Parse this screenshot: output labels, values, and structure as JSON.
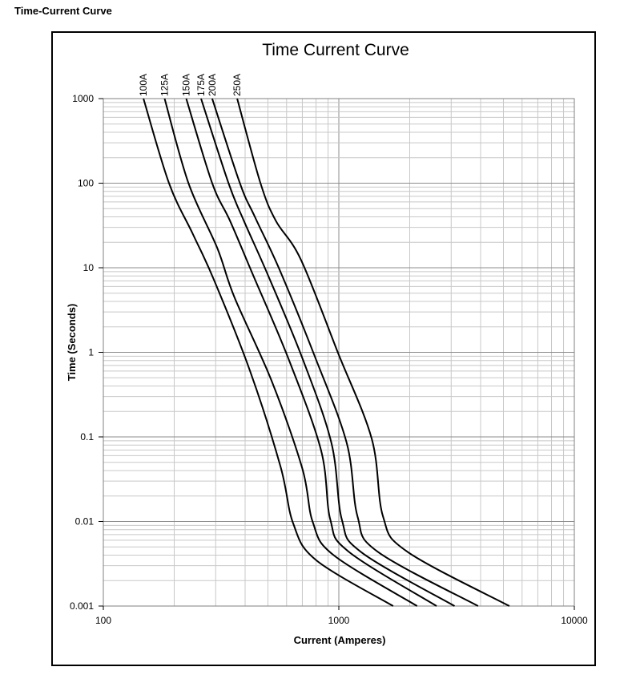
{
  "page": {
    "heading": "Time-Current Curve"
  },
  "chart_data": {
    "type": "line",
    "title": "Time Current Curve",
    "xlabel": "Current (Amperes)",
    "ylabel": "Time (Seconds)",
    "x_scale": "log",
    "y_scale": "log",
    "xlim": [
      100,
      10000
    ],
    "ylim": [
      0.001,
      1000
    ],
    "x_ticks": [
      {
        "value": 100,
        "label": "100"
      },
      {
        "value": 1000,
        "label": "1000"
      },
      {
        "value": 10000,
        "label": "10000"
      }
    ],
    "y_ticks": [
      {
        "value": 1000,
        "label": "1000"
      },
      {
        "value": 100,
        "label": "100"
      },
      {
        "value": 10,
        "label": "10"
      },
      {
        "value": 1,
        "label": "1"
      },
      {
        "value": 0.1,
        "label": "0.1"
      },
      {
        "value": 0.01,
        "label": "0.01"
      },
      {
        "value": 0.001,
        "label": "0.001"
      }
    ],
    "grid": true,
    "legend": "series labels at top of each curve",
    "series": [
      {
        "name": "100A",
        "points": [
          [
            148,
            1000
          ],
          [
            190,
            100
          ],
          [
            240,
            25
          ],
          [
            295,
            7.2
          ],
          [
            420,
            0.6
          ],
          [
            565,
            0.045
          ],
          [
            640,
            0.0095
          ],
          [
            800,
            0.0035
          ],
          [
            1700,
            0.001
          ]
        ]
      },
      {
        "name": "125A",
        "points": [
          [
            182,
            1000
          ],
          [
            230,
            100
          ],
          [
            305,
            17
          ],
          [
            360,
            4.5
          ],
          [
            520,
            0.45
          ],
          [
            700,
            0.042
          ],
          [
            775,
            0.0098
          ],
          [
            950,
            0.004
          ],
          [
            2150,
            0.001
          ]
        ]
      },
      {
        "name": "150A",
        "points": [
          [
            225,
            1000
          ],
          [
            290,
            100
          ],
          [
            345,
            36
          ],
          [
            430,
            8.5
          ],
          [
            610,
            0.85
          ],
          [
            840,
            0.07
          ],
          [
            920,
            0.0105
          ],
          [
            1100,
            0.0044
          ],
          [
            2600,
            0.001
          ]
        ]
      },
      {
        "name": "175A",
        "points": [
          [
            260,
            1000
          ],
          [
            340,
            100
          ],
          [
            395,
            36
          ],
          [
            500,
            8.2
          ],
          [
            700,
            0.85
          ],
          [
            930,
            0.085
          ],
          [
            1030,
            0.0105
          ],
          [
            1250,
            0.0043
          ],
          [
            3100,
            0.001
          ]
        ]
      },
      {
        "name": "200A",
        "points": [
          [
            290,
            1000
          ],
          [
            380,
            100
          ],
          [
            440,
            40
          ],
          [
            560,
            9.5
          ],
          [
            790,
            0.9
          ],
          [
            1080,
            0.085
          ],
          [
            1200,
            0.0115
          ],
          [
            1460,
            0.0044
          ],
          [
            3900,
            0.001
          ]
        ]
      },
      {
        "name": "250A",
        "points": [
          [
            370,
            1000
          ],
          [
            465,
            100
          ],
          [
            540,
            36
          ],
          [
            690,
            12.5
          ],
          [
            990,
            1.0
          ],
          [
            1380,
            0.095
          ],
          [
            1540,
            0.0115
          ],
          [
            1950,
            0.0044
          ],
          [
            5300,
            0.001
          ]
        ]
      }
    ]
  }
}
